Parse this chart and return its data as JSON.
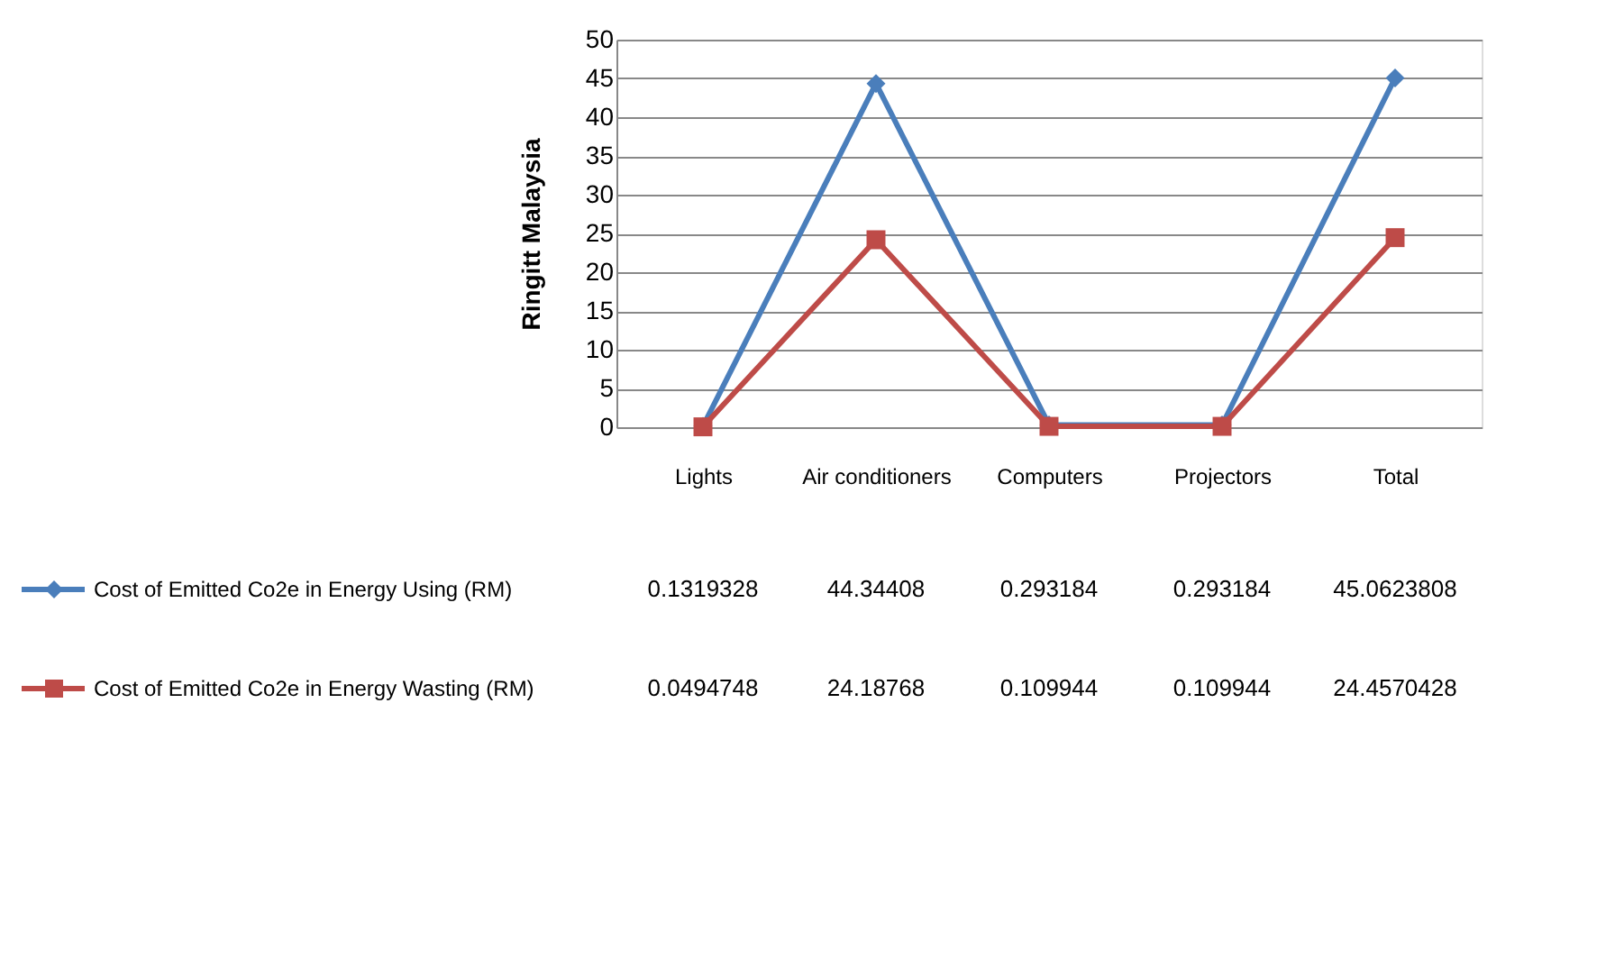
{
  "chart_data": {
    "type": "line",
    "ylabel": "Ringitt Malaysia",
    "categories": [
      "Lights",
      "Air conditioners",
      "Computers",
      "Projectors",
      "Total"
    ],
    "series": [
      {
        "name": "Cost of Emitted Co2e in Energy Using (RM)",
        "color": "#4a7ebb",
        "marker": "diamond",
        "values": [
          0.1319328,
          44.34408,
          0.293184,
          0.293184,
          45.0623808
        ]
      },
      {
        "name": "Cost of Emitted Co2e in Energy Wasting (RM)",
        "color": "#be4b48",
        "marker": "square",
        "values": [
          0.0494748,
          24.18768,
          0.109944,
          0.109944,
          24.4570428
        ]
      }
    ],
    "ylim": [
      0,
      50
    ],
    "yticks": [
      0,
      5,
      10,
      15,
      20,
      25,
      30,
      35,
      40,
      45,
      50
    ],
    "grid": "y",
    "legend": "bottom",
    "data_labels": true,
    "line_style": "solid"
  }
}
